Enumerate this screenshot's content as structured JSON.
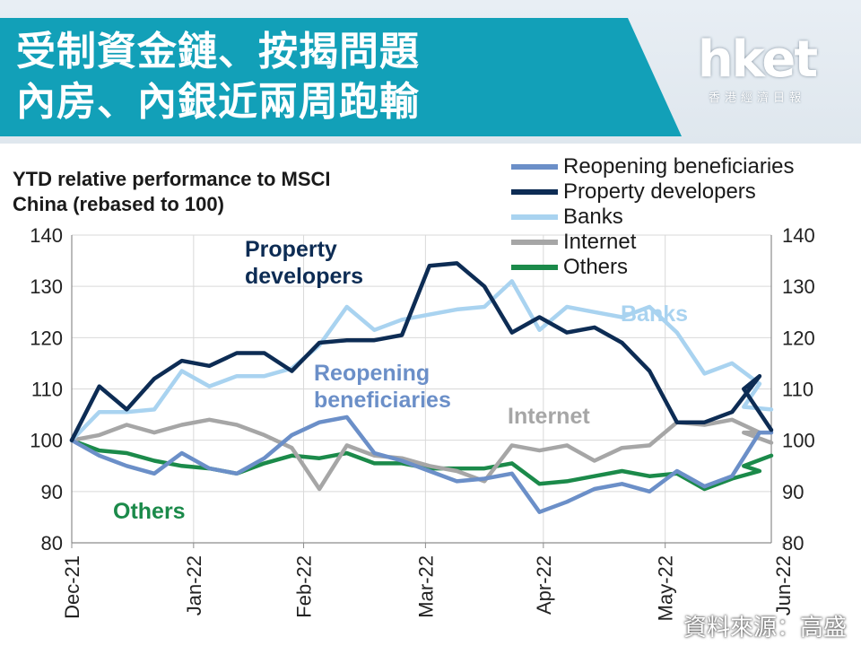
{
  "header": {
    "title_line1": "受制資金鏈、按揭問題",
    "title_line2": "內房、內銀近兩周跑輸"
  },
  "logo": {
    "word": "hket",
    "sub": "香港經濟日報"
  },
  "source": "資料來源：高盛",
  "colors": {
    "banner_band": "#12a0b8",
    "reopening": "#6b8fc8",
    "property": "#0d2c54",
    "banks": "#a9d3f0",
    "internet": "#a6a6a6",
    "others": "#1b8a4a"
  },
  "chart_data": {
    "type": "line",
    "title": "YTD relative performance to MSCI China (rebased to 100)",
    "ylim": [
      80,
      140
    ],
    "yticks": [
      80,
      90,
      100,
      110,
      120,
      130,
      140
    ],
    "xlim": [
      "2021-12-31",
      "2022-06-27"
    ],
    "xticks": [
      {
        "date": "2021-12-31",
        "label": "Dec-21"
      },
      {
        "date": "2022-01-31",
        "label": "Jan-22"
      },
      {
        "date": "2022-02-28",
        "label": "Feb-22"
      },
      {
        "date": "2022-03-31",
        "label": "Mar-22"
      },
      {
        "date": "2022-04-30",
        "label": "Apr-22"
      },
      {
        "date": "2022-05-31",
        "label": "May-22"
      },
      {
        "date": "2022-06-30",
        "label": "Jun-22"
      }
    ],
    "grid": true,
    "legend_position": "top-right",
    "x": [
      "2021-12-31",
      "2022-01-07",
      "2022-01-14",
      "2022-01-21",
      "2022-01-28",
      "2022-02-04",
      "2022-02-11",
      "2022-02-18",
      "2022-02-25",
      "2022-03-04",
      "2022-03-11",
      "2022-03-18",
      "2022-03-25",
      "2022-04-01",
      "2022-04-08",
      "2022-04-15",
      "2022-04-22",
      "2022-04-29",
      "2022-05-06",
      "2022-05-13",
      "2022-05-20",
      "2022-05-27",
      "2022-06-03",
      "2022-06-10",
      "2022-06-17",
      "2022-06-24"
    ],
    "series": [
      {
        "name": "Reopening beneficiaries",
        "color_key": "reopening",
        "values": [
          100,
          97,
          95,
          93.5,
          97.5,
          94.5,
          93.5,
          96.5,
          101,
          103.5,
          104.5,
          97.5,
          96,
          94,
          92,
          92.5,
          93.5,
          86,
          88,
          90.5,
          91.5,
          90,
          94,
          91,
          93,
          101.5
        ]
      },
      {
        "name": "Property developers",
        "color_key": "property",
        "values": [
          100,
          110.5,
          106,
          112,
          115.5,
          114.5,
          117,
          117,
          113.5,
          119,
          119.5,
          119.5,
          120.5,
          134,
          134.5,
          130,
          121,
          124,
          121,
          122,
          119,
          113.5,
          103.5,
          103.5,
          105.5,
          112.5
        ]
      },
      {
        "name": "Banks",
        "color_key": "banks",
        "values": [
          100,
          105.5,
          105.5,
          106,
          113.5,
          110.5,
          112.5,
          112.5,
          114,
          118.5,
          126,
          121.5,
          123.5,
          124.5,
          125.5,
          126,
          131,
          121.5,
          126,
          125,
          124,
          126,
          121,
          113,
          115,
          111
        ]
      },
      {
        "name": "Internet",
        "color_key": "internet",
        "values": [
          100,
          101,
          103,
          101.5,
          103,
          104,
          103,
          101,
          98.5,
          90.5,
          99,
          97,
          96.5,
          95,
          94,
          92,
          99,
          98,
          99,
          96,
          98.5,
          99,
          103.5,
          103,
          104,
          101.5
        ]
      },
      {
        "name": "Others",
        "color_key": "others",
        "values": [
          100,
          98,
          97.5,
          96,
          95,
          94.5,
          93.5,
          95.5,
          97,
          96.5,
          97.5,
          95.5,
          95.5,
          94.5,
          94.5,
          94.5,
          95.5,
          91.5,
          92,
          93,
          94,
          93,
          93.5,
          90.5,
          92.5,
          94
        ]
      }
    ],
    "series_tail": [
      {
        "name": "Reopening beneficiaries",
        "points": [
          [
            "2022-06-27",
            101.5
          ]
        ]
      },
      {
        "name": "Property developers",
        "points": [
          [
            "2022-06-20",
            110
          ],
          [
            "2022-06-27",
            102
          ]
        ]
      },
      {
        "name": "Banks",
        "points": [
          [
            "2022-06-20",
            106.5
          ],
          [
            "2022-06-27",
            106
          ]
        ]
      },
      {
        "name": "Internet",
        "points": [
          [
            "2022-06-20",
            101.5
          ],
          [
            "2022-06-27",
            99.5
          ]
        ]
      },
      {
        "name": "Others",
        "points": [
          [
            "2022-06-20",
            95
          ],
          [
            "2022-06-27",
            97
          ]
        ]
      }
    ],
    "annotations": [
      {
        "text_lines": [
          "Property",
          "developers"
        ],
        "color_key": "property"
      },
      {
        "text_lines": [
          "Banks"
        ],
        "color_key": "banks"
      },
      {
        "text_lines": [
          "Reopening",
          "beneficiaries"
        ],
        "color_key": "reopening"
      },
      {
        "text_lines": [
          "Internet"
        ],
        "color_key": "internet"
      },
      {
        "text_lines": [
          "Others"
        ],
        "color_key": "others"
      }
    ]
  }
}
